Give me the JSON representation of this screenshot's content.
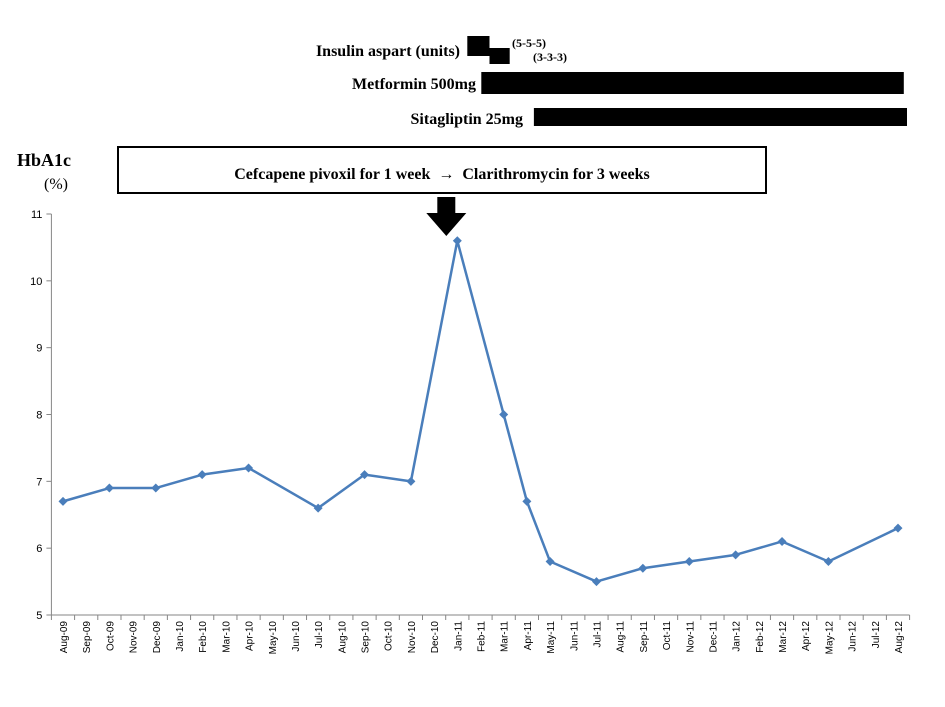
{
  "drugs": [
    {
      "id": "insulin",
      "label": "Insulin aspart (units)",
      "start": "Jan-11",
      "end": "Mar-11",
      "switch": "Feb-11",
      "dose_upper": "(5-5-5)",
      "dose_lower": "(3-3-3)"
    },
    {
      "id": "metformin",
      "label": "Metformin 500mg",
      "start": "Jan-11",
      "end": "Jul-12"
    },
    {
      "id": "sitagliptin",
      "label": "Sitagliptin 25mg",
      "start": "Apr-11",
      "end": "Aug-12"
    }
  ],
  "antibiotic_box": {
    "text": "Cefcapene pivoxil for 1 week  →  Clarithromycin for 3 weeks",
    "marker_at": "Jan-11"
  },
  "chart_data": {
    "type": "line",
    "ylabel_line1": "HbA1c",
    "ylabel_line2": "(%)",
    "ylim": [
      5,
      11
    ],
    "yticks": [
      5,
      6,
      7,
      8,
      9,
      10,
      11
    ],
    "grid": false,
    "categories": [
      "Aug-09",
      "Sep-09",
      "Oct-09",
      "Nov-09",
      "Dec-09",
      "Jan-10",
      "Feb-10",
      "Mar-10",
      "Apr-10",
      "May-10",
      "Jun-10",
      "Jul-10",
      "Aug-10",
      "Sep-10",
      "Oct-10",
      "Nov-10",
      "Dec-10",
      "Jan-11",
      "Feb-11",
      "Mar-11",
      "Apr-11",
      "May-11",
      "Jun-11",
      "Jul-11",
      "Aug-11",
      "Sep-11",
      "Oct-11",
      "Nov-11",
      "Dec-11",
      "Jan-12",
      "Feb-12",
      "Mar-12",
      "Apr-12",
      "May-12",
      "Jun-12",
      "Jul-12",
      "Aug-12"
    ],
    "series": [
      {
        "color": "#4a7ebb",
        "points": [
          {
            "x": "Aug-09",
            "y": 6.7
          },
          {
            "x": "Oct-09",
            "y": 6.9
          },
          {
            "x": "Dec-09",
            "y": 6.9
          },
          {
            "x": "Feb-10",
            "y": 7.1
          },
          {
            "x": "Apr-10",
            "y": 7.2
          },
          {
            "x": "Jul-10",
            "y": 6.6
          },
          {
            "x": "Sep-10",
            "y": 7.1
          },
          {
            "x": "Nov-10",
            "y": 7.0
          },
          {
            "x": "Jan-11",
            "y": 10.6
          },
          {
            "x": "Mar-11",
            "y": 8.0
          },
          {
            "x": "Apr-11",
            "y": 6.7
          },
          {
            "x": "May-11",
            "y": 5.8
          },
          {
            "x": "Jul-11",
            "y": 5.5
          },
          {
            "x": "Sep-11",
            "y": 5.7
          },
          {
            "x": "Nov-11",
            "y": 5.8
          },
          {
            "x": "Jan-12",
            "y": 5.9
          },
          {
            "x": "Mar-12",
            "y": 6.1
          },
          {
            "x": "May-12",
            "y": 5.8
          },
          {
            "x": "Aug-12",
            "y": 6.3
          }
        ]
      }
    ]
  }
}
